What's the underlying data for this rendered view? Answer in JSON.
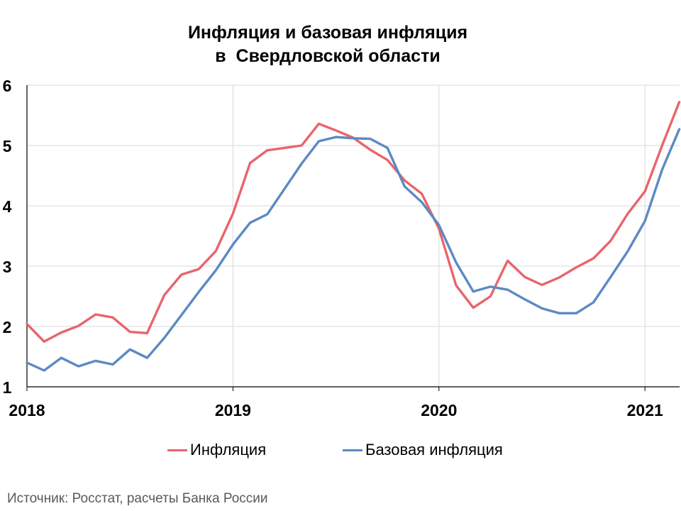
{
  "title": {
    "line1": "Инфляция и базовая инфляция",
    "line2": "в  Свердловской области"
  },
  "source": "Источник: Росстат, расчеты Банка России",
  "colors": {
    "inflation": "#E8656B",
    "core": "#5B8AC4",
    "grid": "#D9D9D9",
    "axis": "#000000"
  },
  "chart_data": {
    "type": "line",
    "title": "Инфляция и базовая инфляция в  Свердловской области",
    "xlabel": "",
    "ylabel": "",
    "x_ticks": [
      "2018",
      "2019",
      "2020",
      "2021"
    ],
    "y_ticks": [
      "1",
      "2",
      "3",
      "4",
      "5",
      "6"
    ],
    "ylim": [
      1,
      6
    ],
    "x_start": "2018-01",
    "grid": true,
    "legend_position": "bottom",
    "series": [
      {
        "name": "Инфляция",
        "color": "#E8656B",
        "values": [
          2.04,
          1.75,
          1.9,
          2.01,
          2.2,
          2.15,
          1.91,
          1.89,
          2.52,
          2.86,
          2.95,
          3.25,
          3.87,
          4.71,
          4.92,
          4.96,
          5.0,
          5.36,
          5.25,
          5.13,
          4.93,
          4.76,
          4.42,
          4.2,
          3.62,
          2.68,
          2.31,
          2.5,
          3.09,
          2.82,
          2.69,
          2.81,
          2.98,
          3.13,
          3.42,
          3.87,
          4.24,
          5.0,
          5.72
        ]
      },
      {
        "name": "Базовая инфляция",
        "color": "#5B8AC4",
        "values": [
          1.4,
          1.27,
          1.48,
          1.34,
          1.43,
          1.37,
          1.62,
          1.48,
          1.81,
          2.19,
          2.57,
          2.93,
          3.36,
          3.72,
          3.86,
          4.28,
          4.7,
          5.07,
          5.14,
          5.12,
          5.11,
          4.96,
          4.32,
          4.06,
          3.68,
          3.06,
          2.58,
          2.66,
          2.61,
          2.45,
          2.3,
          2.22,
          2.22,
          2.4,
          2.82,
          3.25,
          3.75,
          4.6,
          5.27
        ]
      }
    ]
  }
}
